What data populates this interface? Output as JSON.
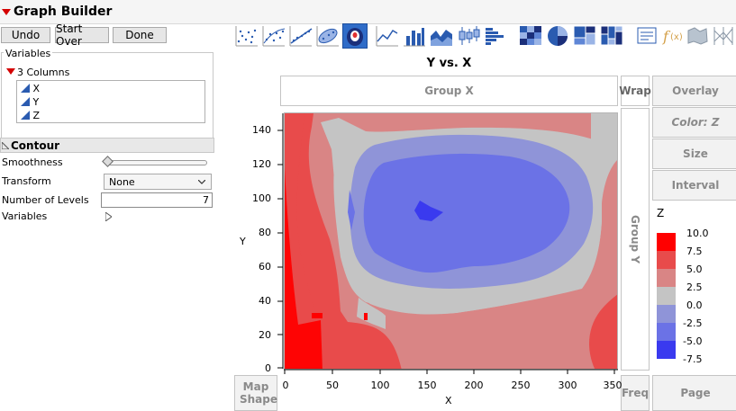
{
  "window": {
    "title": "Graph Builder"
  },
  "buttons": {
    "undo": "Undo",
    "start_over": "Start Over",
    "done": "Done"
  },
  "variables_panel": {
    "title": "Variables",
    "columns_label": "3 Columns",
    "columns": [
      "X",
      "Y",
      "Z"
    ]
  },
  "contour_panel": {
    "title": "Contour",
    "smoothness_label": "Smoothness",
    "smoothness_value": 0.0,
    "transform_label": "Transform",
    "transform_value": "None",
    "levels_label": "Number of Levels",
    "levels_value": "7",
    "variables_label": "Variables"
  },
  "toolbar": {
    "icons": [
      "points-icon",
      "jitter-icon",
      "line-of-fit-icon",
      "ellipse-icon",
      "contour-icon",
      "line-icon",
      "bar-icon",
      "area-icon",
      "box-plot-icon",
      "histogram-icon",
      "heatmap-icon",
      "pie-icon",
      "treemap-icon",
      "mosaic-icon",
      "caption-box-icon",
      "formula-icon",
      "map-shape-icon",
      "parallel-icon"
    ],
    "selected": "contour-icon"
  },
  "graph": {
    "title": "Y vs. X",
    "group_x": "Group X",
    "group_y": "Group Y",
    "wrap": "Wrap",
    "freq": "Freq",
    "page": "Page",
    "map_shape": "Map Shape",
    "overlay": "Overlay",
    "color": "Color: Z",
    "size": "Size",
    "interval": "Interval"
  },
  "chart_data": {
    "type": "contour",
    "xlabel": "X",
    "ylabel": "Y",
    "xlim": [
      0,
      355
    ],
    "ylim": [
      0,
      150
    ],
    "x_ticks": [
      "0",
      "50",
      "100",
      "150",
      "200",
      "250",
      "300",
      "350"
    ],
    "y_ticks": [
      "0",
      "20",
      "40",
      "60",
      "80",
      "100",
      "120",
      "140"
    ],
    "legend": {
      "title": "Z",
      "levels": [
        "10.0",
        "7.5",
        "5.0",
        "2.5",
        "0.0",
        "-2.5",
        "-5.0",
        "-7.5"
      ],
      "colors": [
        "#ff0000",
        "#e84b4b",
        "#d98585",
        "#c4c4c4",
        "#8f94d8",
        "#6b72e6",
        "#3a3aef"
      ]
    }
  }
}
